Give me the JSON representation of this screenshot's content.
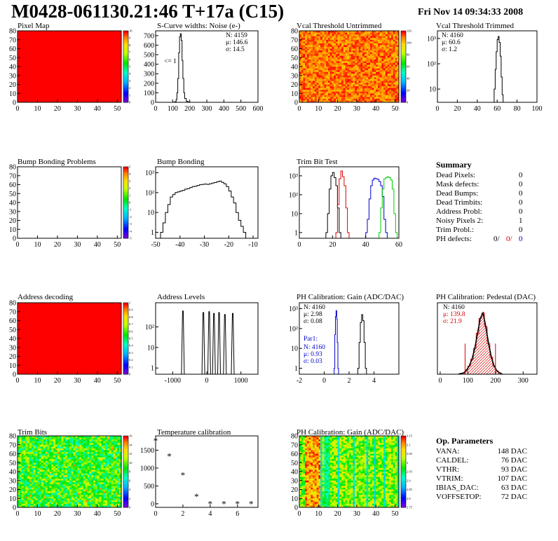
{
  "header": {
    "title": "M0428-061130.21:46 T+17a (C15)",
    "date": "Fri Nov 14 09:34:33 2008"
  },
  "colors": {
    "map_red": "#ff0000",
    "hist_black": "#000000",
    "hist_red": "#dd0000",
    "hist_blue": "#0000cc",
    "hist_green": "#00cc00"
  },
  "chart_data": [
    {
      "id": "pixel-map",
      "type": "heatmap",
      "title": "Pixel Map",
      "xlim": [
        0,
        52
      ],
      "ylim": [
        0,
        80
      ],
      "xticks": [
        0,
        10,
        20,
        30,
        40,
        50
      ],
      "yticks": [
        0,
        10,
        20,
        30,
        40,
        50,
        60,
        70,
        80
      ],
      "palette_ticks": [
        "0",
        "1",
        "2",
        "3",
        "4",
        "5",
        "6",
        "7",
        "8",
        "9",
        "10"
      ],
      "fill": "uniform-max"
    },
    {
      "id": "scurve-noise",
      "type": "line",
      "title": "S-Curve widths: Noise (e-)",
      "xlim": [
        0,
        600
      ],
      "ylim": [
        0,
        750
      ],
      "xticks": [
        0,
        100,
        200,
        300,
        400,
        500,
        600
      ],
      "yticks": [
        0,
        100,
        200,
        300,
        400,
        500,
        600,
        700
      ],
      "stats": [
        "N: 4159",
        "μ: 146.6",
        "σ: 14.5"
      ],
      "annotation": "<= 1",
      "x": [
        100,
        110,
        120,
        125,
        130,
        135,
        140,
        145,
        150,
        155,
        160,
        165,
        170,
        180,
        190,
        200
      ],
      "values": [
        0,
        5,
        30,
        100,
        250,
        520,
        690,
        720,
        650,
        440,
        250,
        100,
        40,
        10,
        3,
        0
      ]
    },
    {
      "id": "vcal-untrimmed",
      "type": "heatmap",
      "title": "Vcal Threshold Untrimmed",
      "xlim": [
        0,
        52
      ],
      "ylim": [
        0,
        80
      ],
      "xticks": [
        0,
        10,
        20,
        30,
        40,
        50
      ],
      "yticks": [
        0,
        10,
        20,
        30,
        40,
        50,
        60,
        70,
        80
      ],
      "palette_ticks": [
        "0",
        "20",
        "40",
        "60",
        "80",
        "100",
        "120"
      ],
      "fill": "noise-orange-red"
    },
    {
      "id": "vcal-trimmed",
      "type": "line",
      "title": "Vcal Threshold Trimmed",
      "log_y": true,
      "xlim": [
        0,
        100
      ],
      "ylim": [
        3,
        2000
      ],
      "xticks": [
        0,
        20,
        40,
        60,
        80,
        100
      ],
      "ytick_labels": [
        "10",
        "10²",
        "10³"
      ],
      "yticks": [
        10,
        100,
        1000
      ],
      "stats": [
        "N: 4160",
        "μ: 60.6",
        "σ:  1.2"
      ],
      "x": [
        56,
        57,
        58,
        59,
        60,
        61,
        62,
        63,
        64,
        65,
        66
      ],
      "values": [
        3,
        10,
        60,
        300,
        900,
        1200,
        700,
        200,
        30,
        6,
        3
      ]
    },
    {
      "id": "bump-problems",
      "type": "heatmap",
      "title": "Bump Bonding Problems",
      "xlim": [
        0,
        52
      ],
      "ylim": [
        0,
        80
      ],
      "xticks": [
        0,
        10,
        20,
        30,
        40,
        50
      ],
      "yticks": [
        0,
        10,
        20,
        30,
        40,
        50,
        60,
        70,
        80
      ],
      "palette_ticks": [
        "-5",
        "-4",
        "-3",
        "-2",
        "-1",
        "0",
        "1",
        "2",
        "3",
        "4",
        "5"
      ],
      "fill": "empty"
    },
    {
      "id": "bump-bonding",
      "type": "line",
      "title": "Bump Bonding",
      "log_y": true,
      "xlim": [
        -50,
        -8
      ],
      "ylim": [
        0.5,
        2000
      ],
      "xticks": [
        -50,
        -40,
        -30,
        -20,
        -10
      ],
      "ytick_labels": [
        "1",
        "10",
        "10²",
        "10³"
      ],
      "yticks": [
        1,
        10,
        100,
        1000
      ],
      "x": [
        -48,
        -47,
        -46,
        -45,
        -44,
        -43,
        -42,
        -41,
        -40,
        -39,
        -38,
        -37,
        -36,
        -35,
        -34,
        -33,
        -32,
        -31,
        -30,
        -29,
        -28,
        -27,
        -26,
        -25,
        -24,
        -23,
        -22,
        -21,
        -20,
        -19,
        -18,
        -17,
        -16,
        -15,
        -14
      ],
      "values": [
        1,
        3,
        10,
        25,
        60,
        80,
        100,
        110,
        120,
        130,
        150,
        160,
        180,
        200,
        210,
        230,
        250,
        260,
        270,
        260,
        280,
        300,
        320,
        350,
        380,
        330,
        280,
        200,
        120,
        60,
        30,
        10,
        4,
        2,
        1
      ]
    },
    {
      "id": "trim-bit-test",
      "type": "line",
      "title": "Trim Bit Test",
      "log_y": true,
      "xlim": [
        0,
        60
      ],
      "ylim": [
        0.5,
        3000
      ],
      "xticks": [
        0,
        20,
        40,
        60
      ],
      "ytick_labels": [
        "1",
        "10",
        "10²",
        "10³"
      ],
      "yticks": [
        1,
        10,
        100,
        1000
      ],
      "series": [
        {
          "color": "#000000",
          "x": [
            16,
            17,
            18,
            19,
            20,
            21,
            22,
            23,
            24
          ],
          "values": [
            1,
            10,
            200,
            1000,
            1500,
            800,
            300,
            20,
            1
          ]
        },
        {
          "color": "#dd0000",
          "x": [
            22,
            23,
            24,
            25,
            26,
            27,
            28,
            29
          ],
          "values": [
            1,
            30,
            700,
            1800,
            900,
            300,
            20,
            1
          ]
        },
        {
          "color": "#0000cc",
          "x": [
            40,
            41,
            42,
            43,
            44,
            45,
            46,
            47,
            48,
            49,
            50,
            51,
            52
          ],
          "values": [
            1,
            5,
            60,
            300,
            600,
            750,
            700,
            650,
            500,
            300,
            80,
            5,
            1
          ]
        },
        {
          "color": "#00cc00",
          "x": [
            48,
            49,
            50,
            51,
            52,
            53,
            54,
            55,
            56,
            57,
            58
          ],
          "values": [
            1,
            20,
            200,
            700,
            800,
            900,
            800,
            600,
            200,
            10,
            1
          ]
        }
      ]
    },
    {
      "id": "address-decoding",
      "type": "heatmap",
      "title": "Address decoding",
      "xlim": [
        0,
        52
      ],
      "ylim": [
        0,
        80
      ],
      "xticks": [
        0,
        10,
        20,
        30,
        40,
        50
      ],
      "yticks": [
        0,
        10,
        20,
        30,
        40,
        50,
        60,
        70,
        80
      ],
      "palette_ticks": [
        "0",
        "0.1",
        "0.2",
        "0.3",
        "0.4",
        "0.5",
        "0.6",
        "0.7",
        "0.8",
        "0.9",
        "1"
      ],
      "fill": "uniform-max"
    },
    {
      "id": "address-levels",
      "type": "line",
      "title": "Address Levels",
      "log_y": true,
      "xlim": [
        -1500,
        1500
      ],
      "ylim": [
        0.5,
        1500
      ],
      "xticks": [
        -1000,
        0,
        1000
      ],
      "ytick_labels": [
        "1",
        "10",
        "10²"
      ],
      "yticks": [
        1,
        10,
        100
      ],
      "spikes": [
        {
          "x": -700,
          "value": 600
        },
        {
          "x": -100,
          "value": 500
        },
        {
          "x": 70,
          "value": 550
        },
        {
          "x": 210,
          "value": 450
        },
        {
          "x": 360,
          "value": 500
        },
        {
          "x": 530,
          "value": 400
        },
        {
          "x": 760,
          "value": 450
        }
      ]
    },
    {
      "id": "ph-gain",
      "type": "line",
      "title": "PH Calibration: Gain (ADC/DAC)",
      "log_y": true,
      "xlim": [
        -2,
        6
      ],
      "ylim": [
        0.5,
        2000
      ],
      "xticks": [
        -2,
        0,
        2,
        4
      ],
      "ytick_labels": [
        "1",
        "10",
        "10²",
        "10³"
      ],
      "yticks": [
        1,
        10,
        100,
        1000
      ],
      "stats": [
        "N: 4160",
        "μ: 2.98",
        "σ: 0.08"
      ],
      "par_label": "Par1:",
      "stats2": [
        "N: 4160",
        "μ: 0.93",
        "σ: 0.03"
      ],
      "series": [
        {
          "color": "#000000",
          "x": [
            2.7,
            2.8,
            2.9,
            3.0,
            3.1,
            3.2,
            3.3
          ],
          "values": [
            1,
            20,
            200,
            500,
            250,
            20,
            1
          ]
        },
        {
          "color": "#0000cc",
          "x": [
            0.8,
            0.85,
            0.9,
            0.95,
            1.0,
            1.05,
            1.1
          ],
          "values": [
            1,
            50,
            400,
            800,
            300,
            20,
            1
          ]
        }
      ]
    },
    {
      "id": "ph-pedestal",
      "type": "line",
      "title": "PH Calibration: Pedestal (DAC)",
      "xlim": [
        -10,
        350
      ],
      "ylim": [
        0,
        105
      ],
      "xticks": [
        0,
        100,
        200,
        300
      ],
      "yticks": [],
      "stats": [
        "N: 4160",
        "μ: 139.8",
        "σ: 21.9"
      ],
      "x": [
        60,
        70,
        80,
        90,
        100,
        110,
        120,
        130,
        140,
        150,
        160,
        170,
        180,
        190,
        200,
        210,
        220
      ],
      "values": [
        0,
        1,
        2,
        6,
        12,
        22,
        38,
        60,
        82,
        90,
        70,
        45,
        25,
        12,
        5,
        2,
        0
      ],
      "fit_lines": [
        90,
        200
      ]
    },
    {
      "id": "trim-bits",
      "type": "heatmap",
      "title": "Trim Bits",
      "xlim": [
        0,
        52
      ],
      "ylim": [
        0,
        80
      ],
      "xticks": [
        0,
        10,
        20,
        30,
        40,
        50
      ],
      "yticks": [
        0,
        10,
        20,
        30,
        40,
        50,
        60,
        70,
        80
      ],
      "palette_ticks": [
        "0",
        "2",
        "4",
        "6",
        "8",
        "10",
        "12",
        "14",
        "16"
      ],
      "fill": "noise-green-yellow"
    },
    {
      "id": "temperature-calibration",
      "type": "scatter",
      "title": "Temperature calibration",
      "xlim": [
        0,
        7.5
      ],
      "ylim": [
        -100,
        1900
      ],
      "xticks": [
        0,
        2,
        4,
        6
      ],
      "yticks": [
        0,
        500,
        1000,
        1500
      ],
      "x": [
        0,
        1,
        2,
        3,
        4,
        5,
        6,
        7
      ],
      "values": [
        1750,
        1320,
        790,
        190,
        -10,
        -10,
        -10,
        -10
      ]
    },
    {
      "id": "ph-gain-map",
      "type": "heatmap",
      "title": "PH Calibration: Gain (ADC/DAC)",
      "xlim": [
        0,
        52
      ],
      "ylim": [
        0,
        80
      ],
      "xticks": [
        0,
        10,
        20,
        30,
        40,
        50
      ],
      "yticks": [
        0,
        10,
        20,
        30,
        40,
        50,
        60,
        70,
        80
      ],
      "palette_ticks": [
        "2.75",
        "2.8",
        "2.85",
        "2.9",
        "2.95",
        "3",
        "3.05",
        "3.1",
        "3.15"
      ],
      "fill": "column-bands"
    }
  ],
  "summary": {
    "title": "Summary",
    "rows": [
      {
        "label": "Dead Pixels:",
        "value": "0"
      },
      {
        "label": "Mask defects:",
        "value": "0"
      },
      {
        "label": "Dead Bumps:",
        "value": "0"
      },
      {
        "label": "Dead Trimbits:",
        "value": "0"
      },
      {
        "label": "Address Probl:",
        "value": "0"
      },
      {
        "label": "Noisy Pixels 2:",
        "value": "1"
      },
      {
        "label": "Trim Probl.:",
        "value": "0"
      }
    ],
    "ph_label": "PH defects:",
    "ph_values": [
      "0/",
      "0/",
      "0"
    ]
  },
  "op_params": {
    "title": "Op. Parameters",
    "rows": [
      {
        "label": "VANA:",
        "value": "148 DAC"
      },
      {
        "label": "CALDEL:",
        "value": "76 DAC"
      },
      {
        "label": "VTHR:",
        "value": "93 DAC"
      },
      {
        "label": "VTRIM:",
        "value": "107 DAC"
      },
      {
        "label": "IBIAS_DAC:",
        "value": "63 DAC"
      },
      {
        "label": "VOFFSETOP:",
        "value": "72 DAC"
      }
    ]
  }
}
